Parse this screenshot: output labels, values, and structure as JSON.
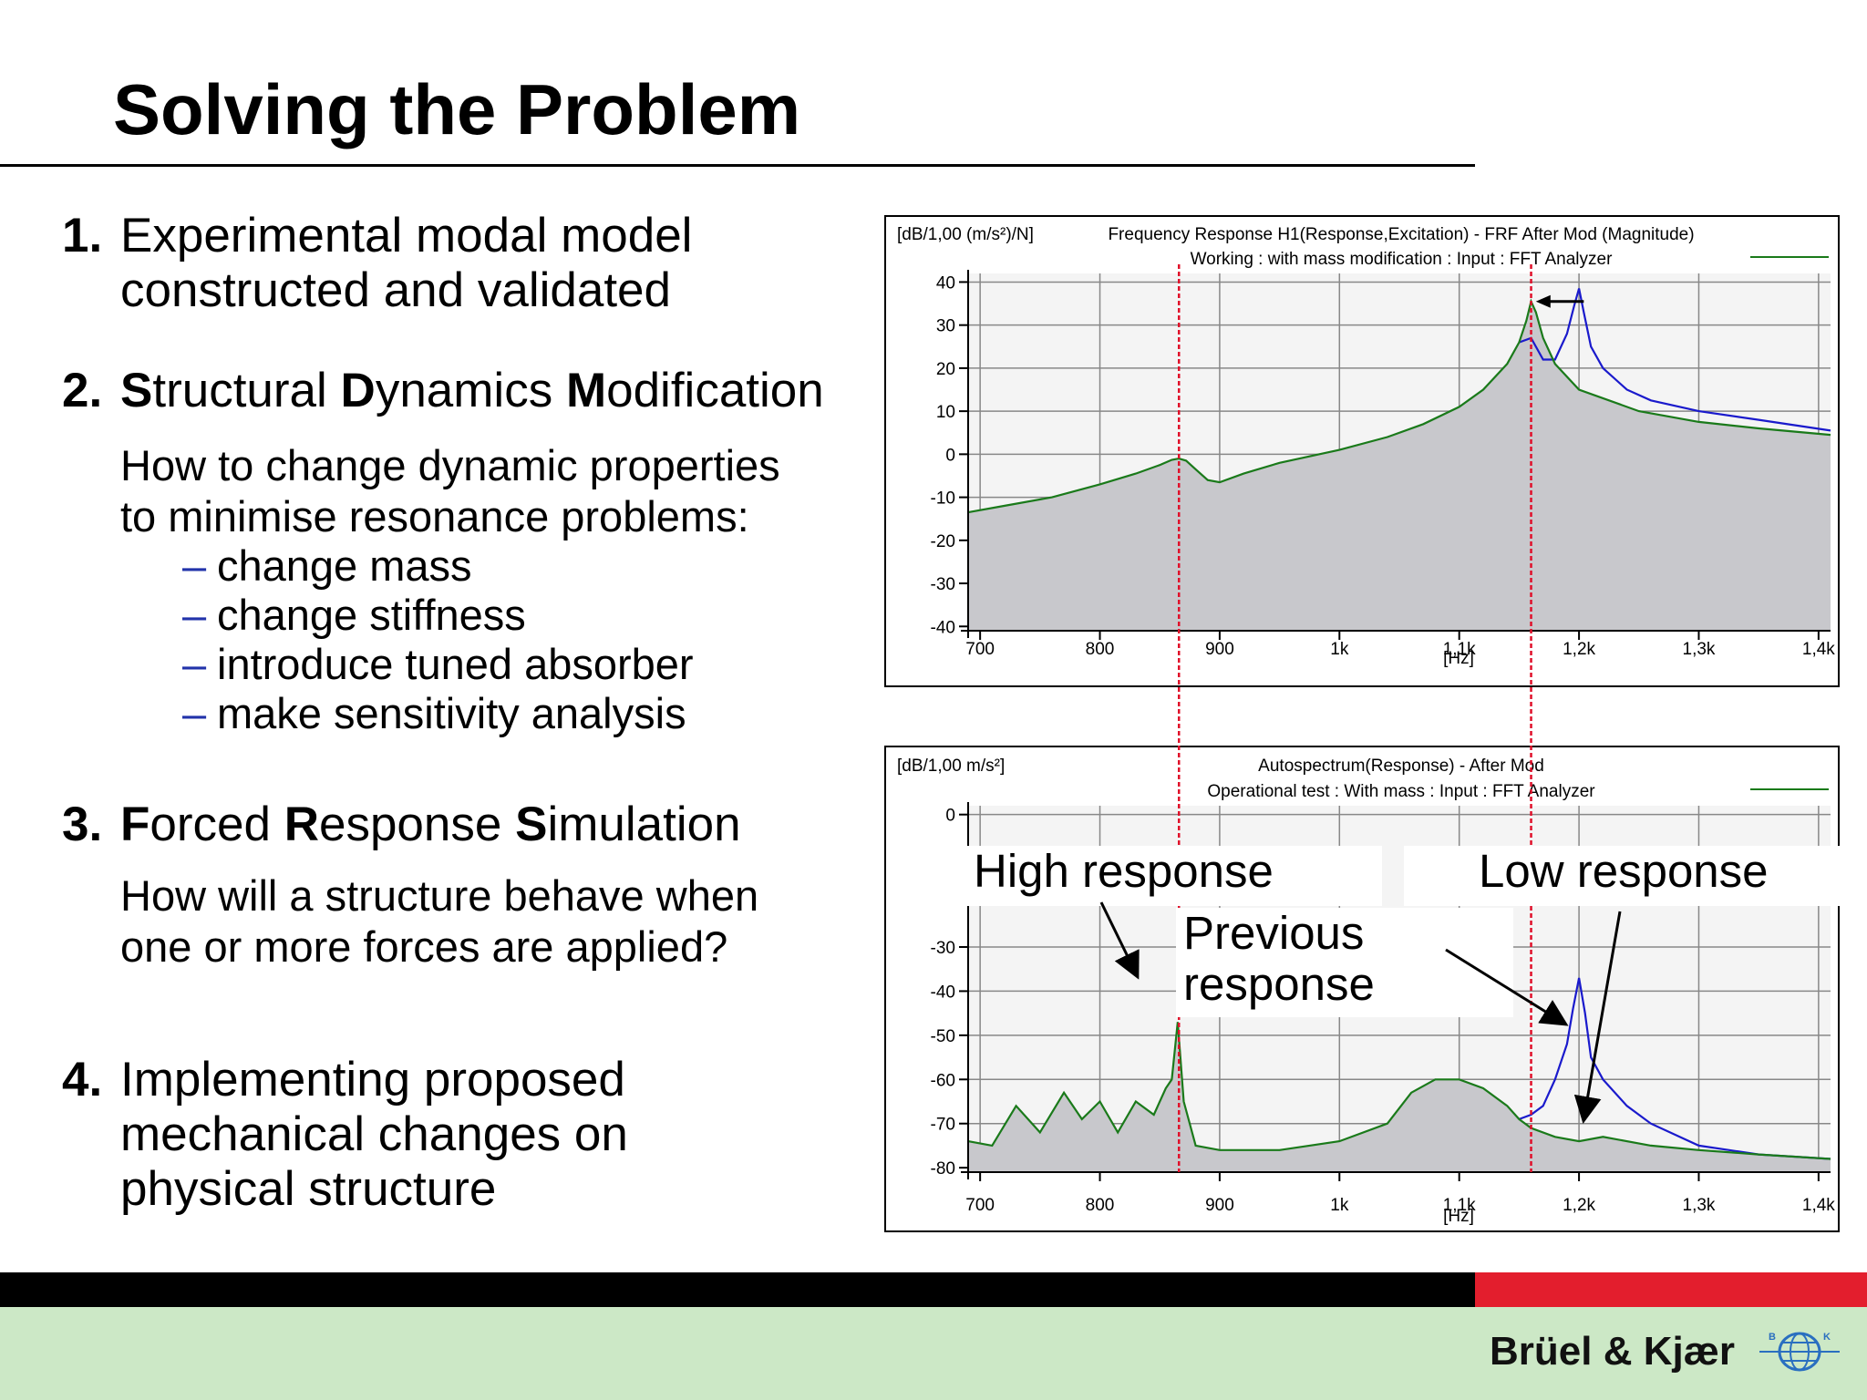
{
  "slide": {
    "title": "Solving the Problem",
    "items": [
      {
        "number": "1.",
        "lines": [
          "Experimental modal model",
          "constructed and validated"
        ]
      },
      {
        "number": "2.",
        "parts": [
          [
            "S",
            "tructural "
          ],
          [
            "D",
            "ynamics "
          ],
          [
            "M",
            "odification"
          ]
        ],
        "description": [
          "How to change dynamic properties",
          "to minimise resonance problems:"
        ],
        "bullets": [
          "change mass",
          "change stiffness",
          "introduce tuned absorber",
          "make sensitivity analysis"
        ]
      },
      {
        "number": "3.",
        "parts": [
          [
            "F",
            "orced "
          ],
          [
            "R",
            "esponse "
          ],
          [
            "S",
            "imulation"
          ]
        ],
        "description": [
          "How will a structure behave when",
          "one or more forces are applied?"
        ]
      },
      {
        "number": "4.",
        "lines": [
          "Implementing proposed",
          "mechanical changes on",
          "physical structure"
        ]
      }
    ],
    "bullet_dash": "–",
    "callouts": {
      "high": "High response",
      "previous_1": "Previous",
      "previous_2": "response",
      "low": "Low response"
    },
    "brand": "Brüel & Kjær",
    "brand_logo_letters": [
      "B",
      "K"
    ],
    "colors": {
      "after_mod": "#1a7a1a",
      "before_mod": "#1a1acc",
      "marker": "#e0102a",
      "fill": "#c8c8cc",
      "footer_red": "#e31e2d",
      "footer_green": "#cce8c6"
    }
  },
  "chart_data": [
    {
      "type": "line",
      "unit_label": "[dB/1,00 (m/s²)/N]",
      "title": "Frequency Response H1(Response,Excitation) - FRF After Mod (Magnitude)",
      "subtitle": "Working : with mass modification : Input : FFT Analyzer",
      "xlabel": "[Hz]",
      "x_ticks": [
        700,
        800,
        900,
        1000,
        1100,
        1200,
        1300,
        1400
      ],
      "x_tick_labels": [
        "700",
        "800",
        "900",
        "1k",
        "1,1k",
        "1,2k",
        "1,3k",
        "1,4k"
      ],
      "y_ticks": [
        40,
        30,
        20,
        10,
        0,
        -10,
        -20,
        -30,
        -40
      ],
      "y_tick_labels": [
        "40",
        "30",
        "20",
        "10",
        "0",
        "-10",
        "-20",
        "-30",
        "-40"
      ],
      "xlim": [
        690,
        1410
      ],
      "ylim": [
        -41,
        42
      ],
      "series": [
        {
          "color": "#1a7a1a",
          "filled": true,
          "x": [
            690,
            720,
            760,
            800,
            830,
            850,
            860,
            866,
            872,
            880,
            890,
            900,
            920,
            950,
            1000,
            1040,
            1070,
            1100,
            1120,
            1140,
            1150,
            1156,
            1160,
            1164,
            1170,
            1180,
            1200,
            1250,
            1300,
            1350,
            1410
          ],
          "y": [
            -13.5,
            -12,
            -10,
            -7,
            -4.5,
            -2.5,
            -1.3,
            -1,
            -1.5,
            -3.5,
            -6,
            -6.5,
            -4.5,
            -2,
            1,
            4,
            7,
            11,
            15,
            21,
            26,
            31,
            35.5,
            33,
            27,
            21,
            15,
            10,
            7.5,
            6,
            4.5
          ]
        },
        {
          "color": "#1a1acc",
          "filled": false,
          "x": [
            1150,
            1160,
            1170,
            1180,
            1190,
            1196,
            1200,
            1204,
            1210,
            1220,
            1240,
            1260,
            1300,
            1350,
            1410
          ],
          "y": [
            26,
            27,
            22,
            22,
            28,
            34.5,
            38.5,
            33,
            25,
            20,
            15,
            12.5,
            10,
            8,
            5.5
          ]
        }
      ],
      "markers_x": [
        866,
        1160
      ]
    },
    {
      "type": "line",
      "unit_label": "[dB/1,00 m/s²]",
      "title": "Autospectrum(Response) - After  Mod",
      "subtitle": "Operational test : With mass : Input : FFT Analyzer",
      "xlabel": "[Hz]",
      "x_ticks": [
        700,
        800,
        900,
        1000,
        1100,
        1200,
        1300,
        1400
      ],
      "x_tick_labels": [
        "700",
        "800",
        "900",
        "1k",
        "1,1k",
        "1,2k",
        "1,3k",
        "1,4k"
      ],
      "y_ticks": [
        0,
        -30,
        -40,
        -50,
        -60,
        -70,
        -80
      ],
      "y_tick_labels": [
        "0",
        "-30",
        "-40",
        "-50",
        "-60",
        "-70",
        "-80"
      ],
      "xlim": [
        690,
        1410
      ],
      "ylim": [
        -81,
        2
      ],
      "series": [
        {
          "color": "#1a7a1a",
          "filled": true,
          "x": [
            690,
            710,
            730,
            750,
            770,
            785,
            800,
            815,
            830,
            845,
            855,
            860,
            865,
            870,
            880,
            900,
            950,
            1000,
            1040,
            1060,
            1080,
            1100,
            1120,
            1140,
            1150,
            1160,
            1180,
            1200,
            1220,
            1260,
            1300,
            1350,
            1410
          ],
          "y": [
            -74,
            -75,
            -66,
            -72,
            -63,
            -69,
            -65,
            -72,
            -65,
            -68,
            -62,
            -60,
            -47,
            -65,
            -75,
            -76,
            -76,
            -74,
            -70,
            -63,
            -60,
            -60,
            -62,
            -66,
            -69,
            -71,
            -73,
            -74,
            -73,
            -75,
            -76,
            -77,
            -78
          ]
        },
        {
          "color": "#1a1acc",
          "filled": false,
          "x": [
            1150,
            1160,
            1170,
            1180,
            1190,
            1195,
            1200,
            1205,
            1210,
            1220,
            1240,
            1260,
            1300,
            1350,
            1410
          ],
          "y": [
            -69,
            -68,
            -66,
            -60,
            -52,
            -44,
            -37,
            -45,
            -55,
            -60,
            -66,
            -70,
            -75,
            -77,
            -78
          ]
        }
      ],
      "markers_x": [
        866,
        1160
      ]
    }
  ]
}
